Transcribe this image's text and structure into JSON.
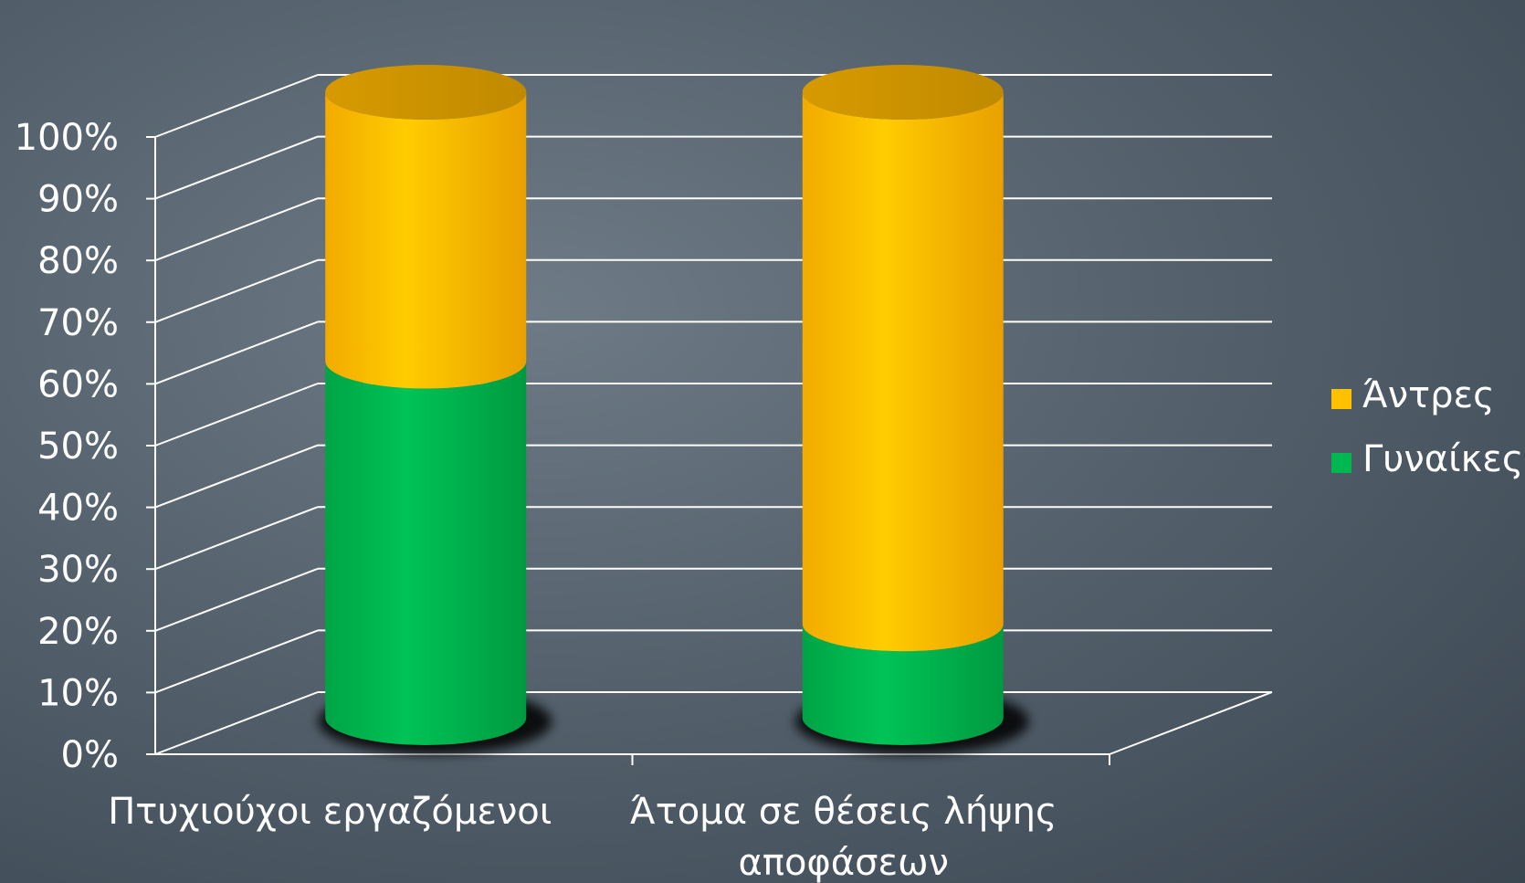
{
  "chart_data": {
    "type": "bar",
    "stacked": true,
    "percent": true,
    "three_d": true,
    "categories": [
      "Πτυχιούχοι εργαζόμενοι",
      "Άτομα σε θέσεις λήψης αποφάσεων"
    ],
    "series": [
      {
        "name": "Γυναίκες",
        "values": [
          57,
          15
        ],
        "color": "#00b84f"
      },
      {
        "name": "Άντρες",
        "values": [
          43,
          85
        ],
        "color": "#ffc000"
      }
    ],
    "yticks": [
      "0%",
      "10%",
      "20%",
      "30%",
      "40%",
      "50%",
      "60%",
      "70%",
      "80%",
      "90%",
      "100%"
    ],
    "ylim": [
      0,
      100
    ],
    "grid": true,
    "legend": {
      "position": "right",
      "order": [
        "Άντρες",
        "Γυναίκες"
      ]
    },
    "title": "",
    "xlabel": "",
    "ylabel": ""
  }
}
